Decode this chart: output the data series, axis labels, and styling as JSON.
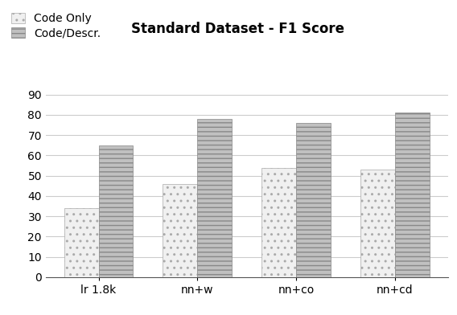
{
  "title": "Standard Dataset - F1 Score",
  "categories": [
    "lr 1.8k",
    "nn+w",
    "nn+co",
    "nn+cd"
  ],
  "series": [
    {
      "label": "Code Only",
      "values": [
        34,
        46,
        54,
        53
      ],
      "hatch": "..",
      "facecolor": "#f0f0f0",
      "edgecolor": "#aaaaaa"
    },
    {
      "label": "Code/Descr.",
      "values": [
        65,
        78,
        76,
        81
      ],
      "hatch": "---",
      "facecolor": "#c0c0c0",
      "edgecolor": "#888888"
    }
  ],
  "ylim": [
    0,
    90
  ],
  "yticks": [
    0,
    10,
    20,
    30,
    40,
    50,
    60,
    70,
    80,
    90
  ],
  "bar_width": 0.35,
  "title_fontsize": 12,
  "tick_fontsize": 10,
  "legend_fontsize": 10,
  "background_color": "#ffffff",
  "grid_color": "#cccccc"
}
